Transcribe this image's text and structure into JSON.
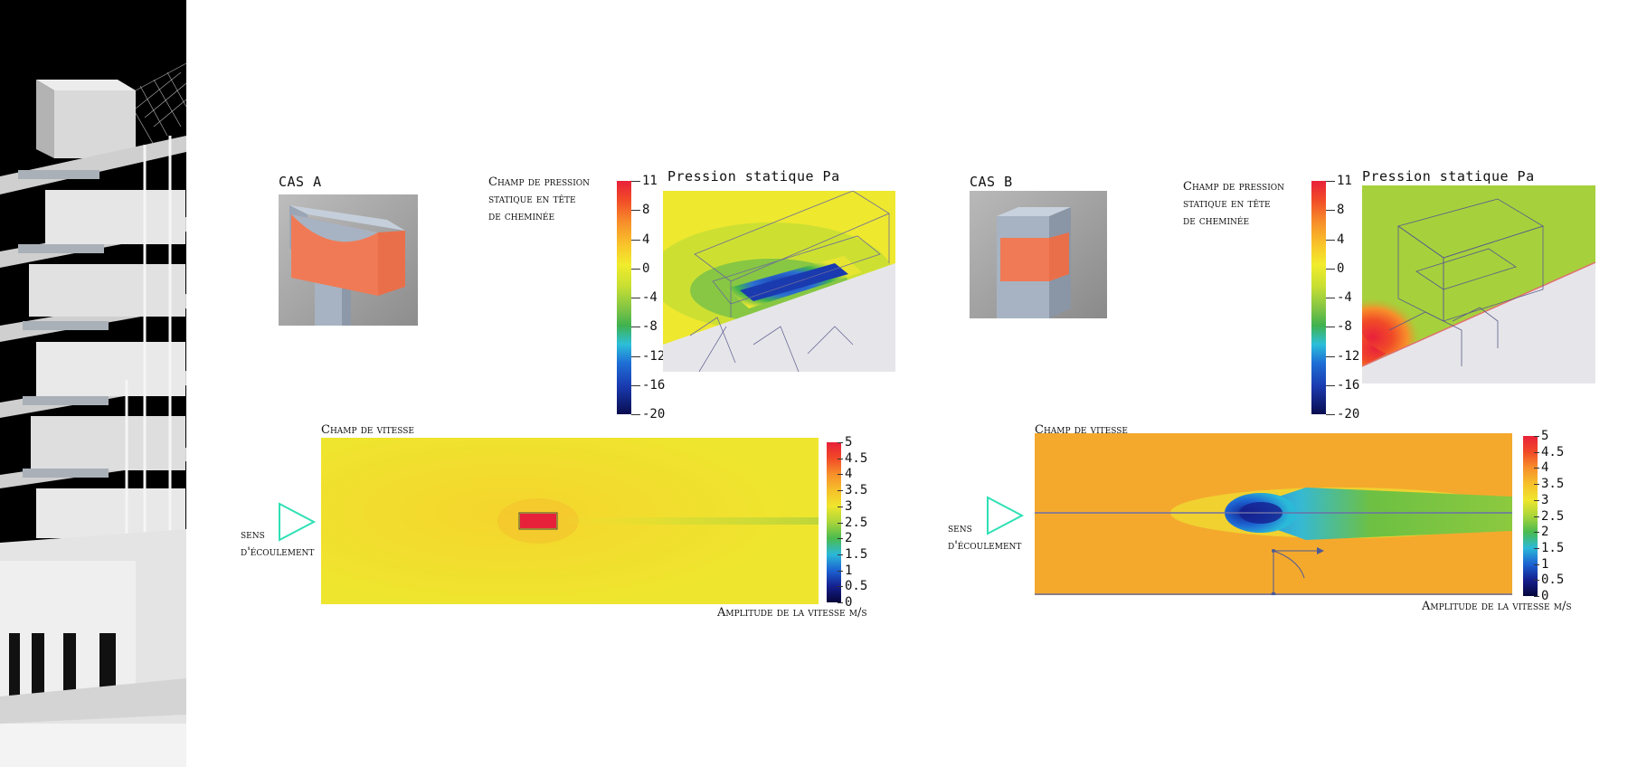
{
  "case_a": {
    "title": "CAS A",
    "pressure_label_lines": [
      "Champ de pression",
      "statique en tête",
      "de cheminée"
    ],
    "pressure_title": "Pression statique Pa",
    "pressure_ticks": [
      "11",
      "8",
      "4",
      "0",
      "-4",
      "-8",
      "-12",
      "-16",
      "-20"
    ],
    "speed_title": "Champ de vitesse",
    "speed_ticks": [
      "5",
      "4.5",
      "4",
      "3.5",
      "3",
      "2.5",
      "2",
      "1.5",
      "1",
      "0.5",
      "0"
    ],
    "speed_axis_label": "Amplitude de la vitesse m/s",
    "flow_label_lines": [
      "sens",
      "d'écoulement"
    ]
  },
  "case_b": {
    "title": "CAS B",
    "pressure_label_lines": [
      "Champ de pression",
      "statique en tête",
      "de cheminée"
    ],
    "pressure_title": "Pression statique Pa",
    "pressure_ticks": [
      "11",
      "8",
      "4",
      "0",
      "-4",
      "-8",
      "-12",
      "-16",
      "-20"
    ],
    "speed_title": "Champ de vitesse",
    "speed_ticks": [
      "5",
      "4.5",
      "4",
      "3.5",
      "3",
      "2.5",
      "2",
      "1.5",
      "1",
      "0.5",
      "0"
    ],
    "speed_axis_label": "Amplitude de la vitesse m/s",
    "flow_label_lines": [
      "sens",
      "d'écoulement"
    ]
  },
  "colors": {
    "flow_arrow": "#2fe0b5",
    "chimney_face": "#f07a55",
    "chimney_body": "#a7b3c2"
  }
}
